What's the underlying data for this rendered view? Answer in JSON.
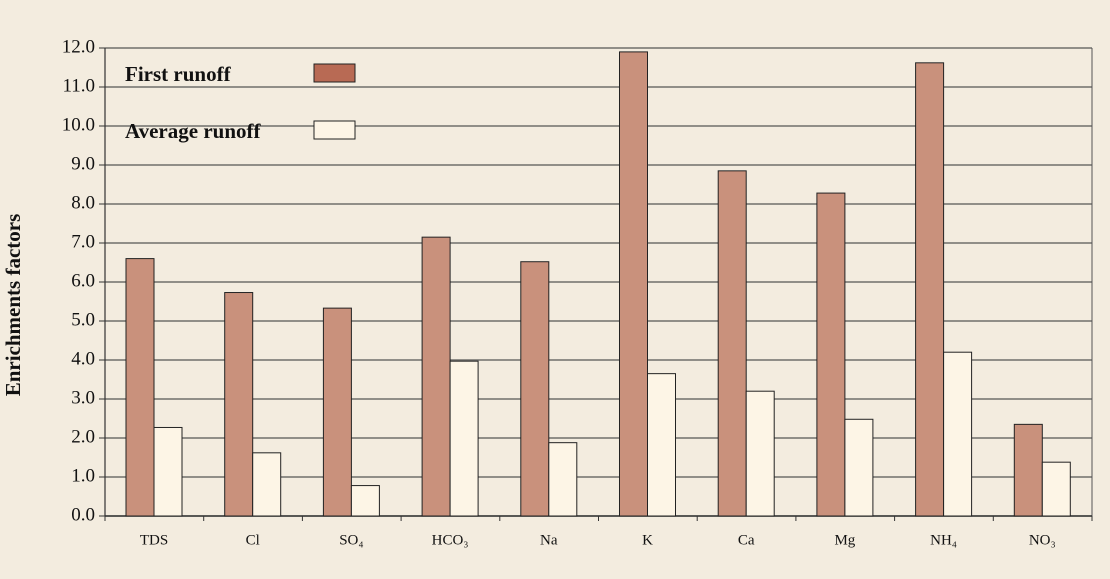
{
  "chart_data": {
    "type": "bar",
    "y_label": "Enrichments factors",
    "categories": [
      "TDS",
      "Cl",
      "SO₄",
      "HCO₃",
      "Na",
      "K",
      "Ca",
      "Mg",
      "NH₄",
      "NO₃"
    ],
    "series": [
      {
        "name": "First runoff",
        "color": "#c9917c",
        "values": [
          6.6,
          5.73,
          5.33,
          7.15,
          6.52,
          11.9,
          8.85,
          8.28,
          11.62,
          2.35
        ]
      },
      {
        "name": "Average runoff",
        "color": "#fdf5e6",
        "values": [
          2.27,
          1.62,
          0.78,
          3.97,
          1.88,
          3.65,
          3.2,
          2.48,
          4.2,
          1.38
        ]
      }
    ],
    "ylim": [
      0,
      12
    ],
    "yticks": [
      {
        "value": 0,
        "label": "0.0"
      },
      {
        "value": 1,
        "label": "1.0"
      },
      {
        "value": 2,
        "label": "2.0"
      },
      {
        "value": 3,
        "label": "3.0"
      },
      {
        "value": 4,
        "label": "4.0"
      },
      {
        "value": 5,
        "label": "5.0"
      },
      {
        "value": 6,
        "label": "6.0"
      },
      {
        "value": 7,
        "label": "7.0"
      },
      {
        "value": 8,
        "label": "8.0"
      },
      {
        "value": 9,
        "label": "9.0"
      },
      {
        "value": 10,
        "label": "10.0"
      },
      {
        "value": 11,
        "label": "11.0"
      },
      {
        "value": 12,
        "label": "12.0"
      }
    ],
    "grid": true
  }
}
